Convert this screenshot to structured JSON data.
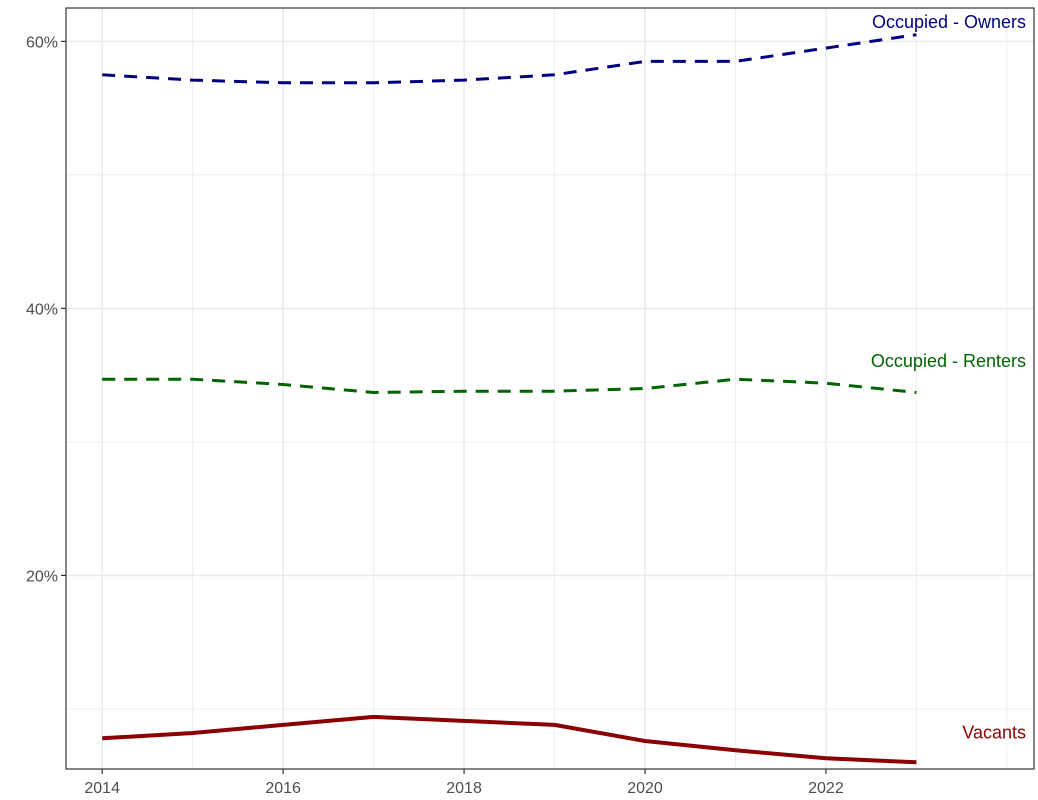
{
  "chart_data": {
    "type": "line",
    "title": "",
    "xlabel": "",
    "ylabel": "",
    "x": [
      2014,
      2015,
      2016,
      2017,
      2018,
      2019,
      2020,
      2021,
      2022,
      2023
    ],
    "xlim": [
      2013.6,
      2024.3
    ],
    "ylim": [
      5.5,
      62.5
    ],
    "x_ticks": [
      {
        "value": 2014,
        "label": "2014"
      },
      {
        "value": 2016,
        "label": "2016"
      },
      {
        "value": 2018,
        "label": "2018"
      },
      {
        "value": 2020,
        "label": "2020"
      },
      {
        "value": 2022,
        "label": "2022"
      }
    ],
    "y_ticks": [
      {
        "value": 20,
        "label": "20%"
      },
      {
        "value": 40,
        "label": "40%"
      },
      {
        "value": 60,
        "label": "60%"
      }
    ],
    "grid": true,
    "legend": "none (direct labels)",
    "series": [
      {
        "name": "Occupied - Owners",
        "color": "#000080",
        "style": "dashed",
        "values": [
          57.5,
          57.1,
          56.9,
          56.9,
          57.1,
          57.5,
          58.5,
          58.5,
          59.5,
          60.5
        ]
      },
      {
        "name": "Occupied - Renters",
        "color": "#006400",
        "style": "dashed",
        "values": [
          34.7,
          34.7,
          34.3,
          33.7,
          33.8,
          33.8,
          34.0,
          34.7,
          34.4,
          33.7
        ]
      },
      {
        "name": "Vacants",
        "color": "#8b0000",
        "style": "solid",
        "values": [
          7.8,
          8.2,
          8.8,
          9.4,
          9.1,
          8.8,
          7.6,
          6.9,
          6.3,
          6.0
        ]
      }
    ]
  }
}
